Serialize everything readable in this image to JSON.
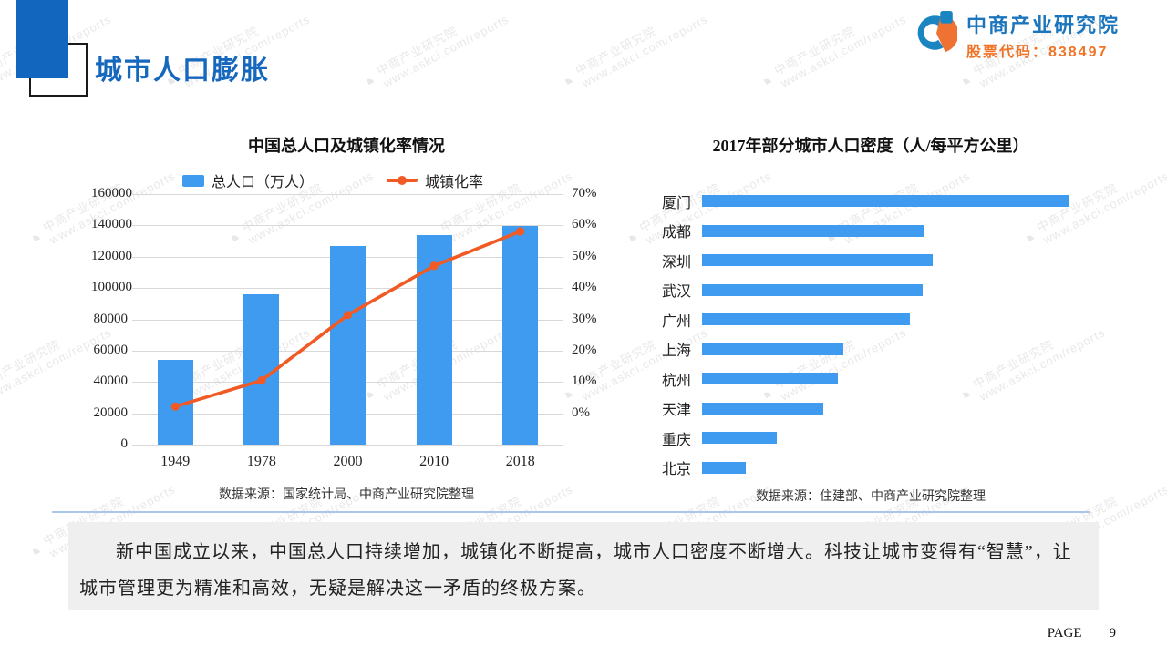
{
  "header": {
    "title": "城市人口膨胀"
  },
  "logo": {
    "name": "中商产业研究院",
    "stock_label": "股票代码：838497",
    "colors": {
      "blue": "#1B75BC",
      "orange": "#F07428"
    }
  },
  "watermark": {
    "line1": "中商产业研究院",
    "line2": "www.askci.com/reports"
  },
  "chart_data": [
    {
      "type": "combo-bar-line",
      "title": "中国总人口及城镇化率情况",
      "categories": [
        "1949",
        "1978",
        "2000",
        "2010",
        "2018"
      ],
      "series": [
        {
          "name": "总人口（万人）",
          "type": "bar",
          "axis": "left",
          "color": "#3E9BF0",
          "values": [
            54167,
            96259,
            126743,
            134091,
            139538
          ]
        },
        {
          "name": "城镇化率",
          "type": "line",
          "axis": "right",
          "color": "#F15A24",
          "unit": "%",
          "values": [
            10.64,
            17.92,
            36.22,
            49.95,
            59.58
          ]
        }
      ],
      "left_axis": {
        "min": 0,
        "max": 160000,
        "step": 20000,
        "tick_labels": [
          "160000",
          "140000",
          "120000",
          "100000",
          "80000",
          "60000",
          "40000",
          "20000",
          "0"
        ]
      },
      "right_axis": {
        "min": 0,
        "max": 70,
        "step": 10,
        "tick_labels": [
          "70%",
          "60%",
          "50%",
          "40%",
          "30%",
          "20%",
          "10%",
          "0%"
        ]
      },
      "grid": "horizontal",
      "legend_position": "top",
      "source": "数据来源：国家统计局、中商产业研究院整理"
    },
    {
      "type": "bar",
      "orientation": "horizontal",
      "title": "2017年部分城市人口密度（人/每平方公里）",
      "categories": [
        "厦门",
        "成都",
        "深圳",
        "武汉",
        "广州",
        "上海",
        "杭州",
        "天津",
        "重庆",
        "北京"
      ],
      "values_relative_to_max_pct": [
        100,
        60.3,
        62.8,
        60.0,
        56.6,
        38.5,
        37.0,
        33.0,
        20.3,
        11.9
      ],
      "value_axis_shown": false,
      "color": "#3E9BF0",
      "source": "数据来源：住建部、中商产业研究院整理"
    }
  ],
  "summary": {
    "text": "新中国成立以来，中国总人口持续增加，城镇化不断提高，城市人口密度不断增大。科技让城市变得有“智慧”，让城市管理更为精准和高效，无疑是解决这一矛盾的终极方案。"
  },
  "footer": {
    "page_label": "PAGE",
    "page_number": "9"
  }
}
